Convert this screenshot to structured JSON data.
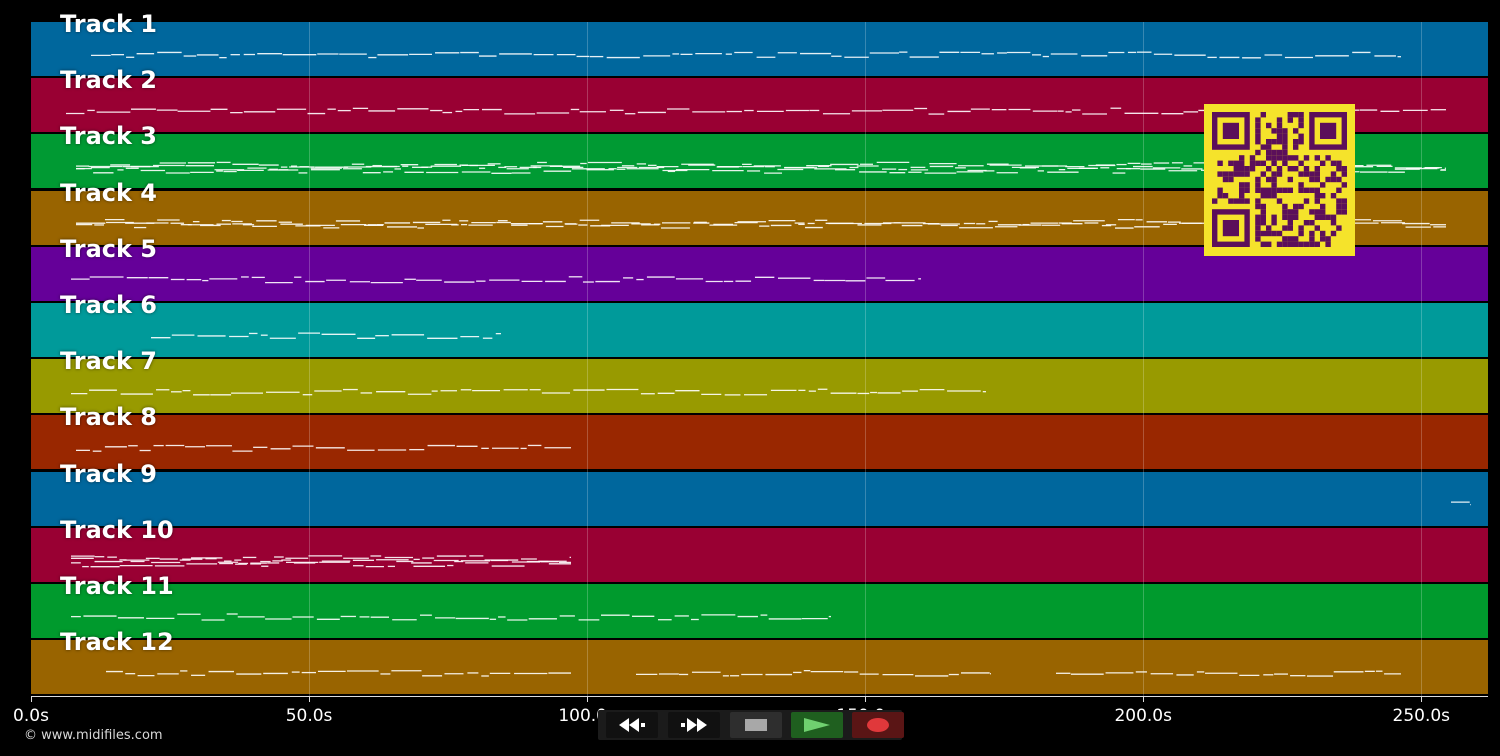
{
  "tracks": [
    {
      "label": "Track 1",
      "color": "#00679d"
    },
    {
      "label": "Track 2",
      "color": "#990033"
    },
    {
      "label": "Track 3",
      "color": "#009a33"
    },
    {
      "label": "Track 4",
      "color": "#996400"
    },
    {
      "label": "Track 5",
      "color": "#650099"
    },
    {
      "label": "Track 6",
      "color": "#009a9a"
    },
    {
      "label": "Track 7",
      "color": "#989a00"
    },
    {
      "label": "Track 8",
      "color": "#992700"
    },
    {
      "label": "Track 9",
      "color": "#00679d"
    },
    {
      "label": "Track 10",
      "color": "#990033"
    },
    {
      "label": "Track 11",
      "color": "#009a2d"
    },
    {
      "label": "Track 12",
      "color": "#996400"
    }
  ],
  "timeline": {
    "ticks": [
      {
        "label": "0.0s",
        "value": 0
      },
      {
        "label": "50.0s",
        "value": 50
      },
      {
        "label": "100.0s",
        "value": 100
      },
      {
        "label": "150.0s",
        "value": 150
      },
      {
        "label": "200.0s",
        "value": 200
      },
      {
        "label": "250.0s",
        "value": 250
      }
    ],
    "max": 262
  },
  "copyright": "© www.midifiles.com",
  "transport": {
    "rewind_icon": "rewind-icon",
    "forward_icon": "fast-forward-icon",
    "stop_icon": "stop-icon",
    "play_icon": "play-icon",
    "record_icon": "record-icon",
    "play_color": "#1f5f1f",
    "record_color": "#5a1515"
  },
  "qr": {
    "color": "#5b0f5a",
    "background": "#f5e32b"
  }
}
